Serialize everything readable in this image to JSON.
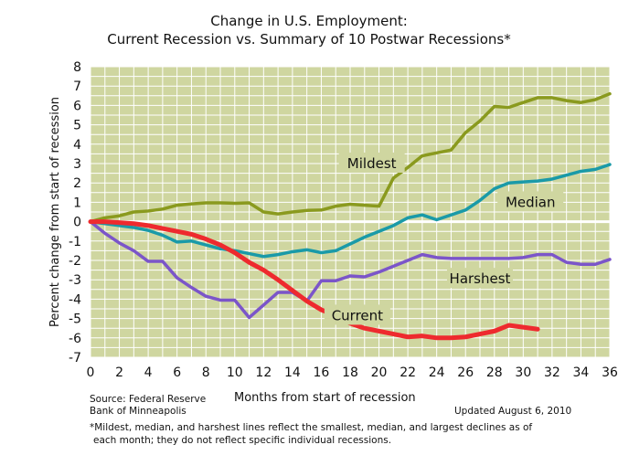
{
  "chart_data": {
    "type": "line",
    "title": "Change in U.S. Employment:",
    "subtitle": "Current Recession vs. Summary of 10 Postwar Recessions*",
    "xlabel": "Months from start of recession",
    "ylabel": "Percent change from start of recession",
    "xlim": [
      0,
      36
    ],
    "ylim": [
      -7,
      8
    ],
    "xticks": [
      0,
      2,
      4,
      6,
      8,
      10,
      12,
      14,
      16,
      18,
      20,
      22,
      24,
      26,
      28,
      30,
      32,
      34,
      36
    ],
    "yticks": [
      -7,
      -6,
      -5,
      -4,
      -3,
      -2,
      -1,
      0,
      1,
      2,
      3,
      4,
      5,
      6,
      7,
      8
    ],
    "grid": true,
    "background": "#cfd6a0",
    "series": [
      {
        "name": "Mildest",
        "color": "#8a9a1e",
        "x": [
          0,
          1,
          2,
          3,
          4,
          5,
          6,
          7,
          8,
          9,
          10,
          11,
          12,
          13,
          14,
          15,
          16,
          17,
          18,
          19,
          20,
          21,
          22,
          23,
          24,
          25,
          26,
          27,
          28,
          29,
          30,
          31,
          32,
          33,
          34,
          35,
          36
        ],
        "values": [
          0,
          0.2,
          0.3,
          0.5,
          0.55,
          0.65,
          0.85,
          0.92,
          0.97,
          0.97,
          0.95,
          0.97,
          0.5,
          0.4,
          0.5,
          0.58,
          0.6,
          0.8,
          0.9,
          0.85,
          0.8,
          2.25,
          2.8,
          3.4,
          3.55,
          3.7,
          4.6,
          5.2,
          5.95,
          5.9,
          6.15,
          6.4,
          6.4,
          6.25,
          6.15,
          6.3,
          6.6
        ]
      },
      {
        "name": "Median",
        "color": "#1a9aa8",
        "x": [
          0,
          1,
          2,
          3,
          4,
          5,
          6,
          7,
          8,
          9,
          10,
          11,
          12,
          13,
          14,
          15,
          16,
          17,
          18,
          19,
          20,
          21,
          22,
          23,
          24,
          25,
          26,
          27,
          28,
          29,
          30,
          31,
          32,
          33,
          34,
          35,
          36
        ],
        "values": [
          0,
          -0.1,
          -0.2,
          -0.3,
          -0.45,
          -0.7,
          -1.05,
          -1.0,
          -1.2,
          -1.4,
          -1.5,
          -1.65,
          -1.8,
          -1.7,
          -1.55,
          -1.45,
          -1.6,
          -1.5,
          -1.15,
          -0.8,
          -0.5,
          -0.2,
          0.2,
          0.35,
          0.1,
          0.35,
          0.6,
          1.1,
          1.7,
          2.0,
          2.05,
          2.1,
          2.2,
          2.4,
          2.6,
          2.7,
          2.95
        ]
      },
      {
        "name": "Harshest",
        "color": "#7b55c9",
        "x": [
          0,
          1,
          2,
          3,
          4,
          5,
          6,
          7,
          8,
          9,
          10,
          11,
          12,
          13,
          14,
          15,
          16,
          17,
          18,
          19,
          20,
          21,
          22,
          23,
          24,
          25,
          26,
          27,
          28,
          29,
          30,
          31,
          32,
          33,
          34,
          35,
          36
        ],
        "values": [
          0,
          -0.6,
          -1.1,
          -1.5,
          -2.05,
          -2.05,
          -2.9,
          -3.4,
          -3.85,
          -4.05,
          -4.05,
          -4.95,
          -4.3,
          -3.65,
          -3.65,
          -4.1,
          -3.05,
          -3.05,
          -2.8,
          -2.85,
          -2.6,
          -2.3,
          -2.0,
          -1.7,
          -1.85,
          -1.9,
          -1.9,
          -1.9,
          -1.9,
          -1.9,
          -1.85,
          -1.7,
          -1.7,
          -2.1,
          -2.2,
          -2.2,
          -1.95
        ]
      },
      {
        "name": "Current",
        "color": "#ee2a2e",
        "x": [
          0,
          1,
          2,
          3,
          4,
          5,
          6,
          7,
          8,
          9,
          10,
          11,
          12,
          13,
          14,
          15,
          16,
          17,
          18,
          19,
          20,
          21,
          22,
          23,
          24,
          25,
          26,
          27,
          28,
          29,
          30,
          31
        ],
        "values": [
          0,
          0,
          -0.05,
          -0.1,
          -0.2,
          -0.35,
          -0.5,
          -0.65,
          -0.9,
          -1.2,
          -1.6,
          -2.1,
          -2.5,
          -3.0,
          -3.55,
          -4.1,
          -4.55,
          -4.85,
          -5.25,
          -5.5,
          -5.65,
          -5.8,
          -5.95,
          -5.9,
          -6.0,
          -6.0,
          -5.95,
          -5.8,
          -5.65,
          -5.35,
          -5.45,
          -5.55
        ]
      }
    ],
    "series_labels": [
      {
        "text": "Mildest",
        "x": 19.5,
        "y": 3.0
      },
      {
        "text": "Median",
        "x": 30.5,
        "y": 1.0
      },
      {
        "text": "Harshest",
        "x": 27,
        "y": -2.95
      },
      {
        "text": "Current",
        "x": 18.5,
        "y": -4.85
      }
    ]
  },
  "source": [
    "Source: Federal Reserve",
    "Bank of Minneapolis"
  ],
  "updated": "Updated August 6, 2010",
  "footnote": [
    "*Mildest, median, and harshest lines reflect the smallest, median, and largest declines as of",
    "each month; they do not reflect specific individual recessions."
  ]
}
